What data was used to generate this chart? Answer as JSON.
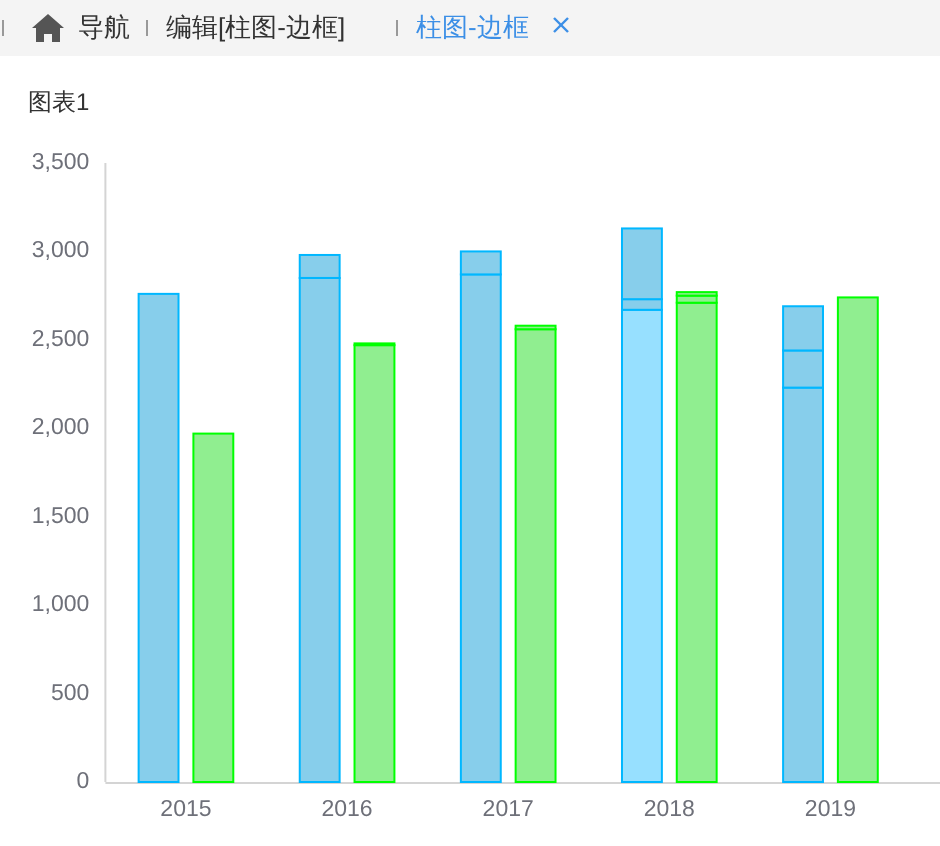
{
  "chart_data": {
    "type": "bar",
    "title": "图表1",
    "annotations": [
      "导航",
      "编辑[柱图-边框]",
      "柱图-边框"
    ],
    "x": [
      2014.83,
      2015.17,
      2015.83,
      2016.17,
      2016.83,
      2017.17,
      2017.83,
      2018.17,
      2018.83,
      2019.17
    ],
    "stacked": true,
    "series": [
      {
        "color": "#87ceeb",
        "colors": [
          "#87ceeb",
          null,
          "#87ceeb",
          null,
          "#87ceeb",
          null,
          "#97e0ff",
          null,
          "#87ceeb",
          null
        ],
        "values": [
          2760,
          null,
          2850,
          null,
          2870,
          null,
          2670,
          null,
          2230,
          null
        ]
      },
      {
        "color": "#87ceeb",
        "values": [
          null,
          null,
          130,
          null,
          130,
          null,
          60,
          null,
          210,
          null
        ]
      },
      {
        "color": "#87ceeb",
        "values": [
          null,
          null,
          null,
          null,
          null,
          null,
          400,
          null,
          250,
          null
        ]
      },
      {
        "color": "#90ee90",
        "values": [
          null,
          1970,
          null,
          2470,
          null,
          2560,
          null,
          2710,
          null,
          2740
        ]
      },
      {
        "color": "#90ee90",
        "values": [
          null,
          null,
          null,
          10,
          null,
          20,
          null,
          40,
          null,
          null
        ]
      },
      {
        "color": "#90ee90",
        "values": [
          null,
          null,
          null,
          null,
          null,
          null,
          null,
          20,
          null,
          null
        ]
      }
    ],
    "xlim": [
      2014.5,
      2019.68
    ],
    "xticks": [
      2015,
      2016,
      2017,
      2018,
      2019
    ],
    "ylim": [
      0,
      3500
    ],
    "yticks": [
      0,
      500,
      {
        "value": 1000,
        "label": "1,000"
      },
      {
        "value": 1500,
        "label": "1,500"
      },
      {
        "value": 2000,
        "label": "2,000"
      },
      {
        "value": 2500,
        "label": "2,500"
      },
      {
        "value": 3000,
        "label": "3,000"
      },
      {
        "value": 3500,
        "label": "3,500"
      }
    ]
  }
}
